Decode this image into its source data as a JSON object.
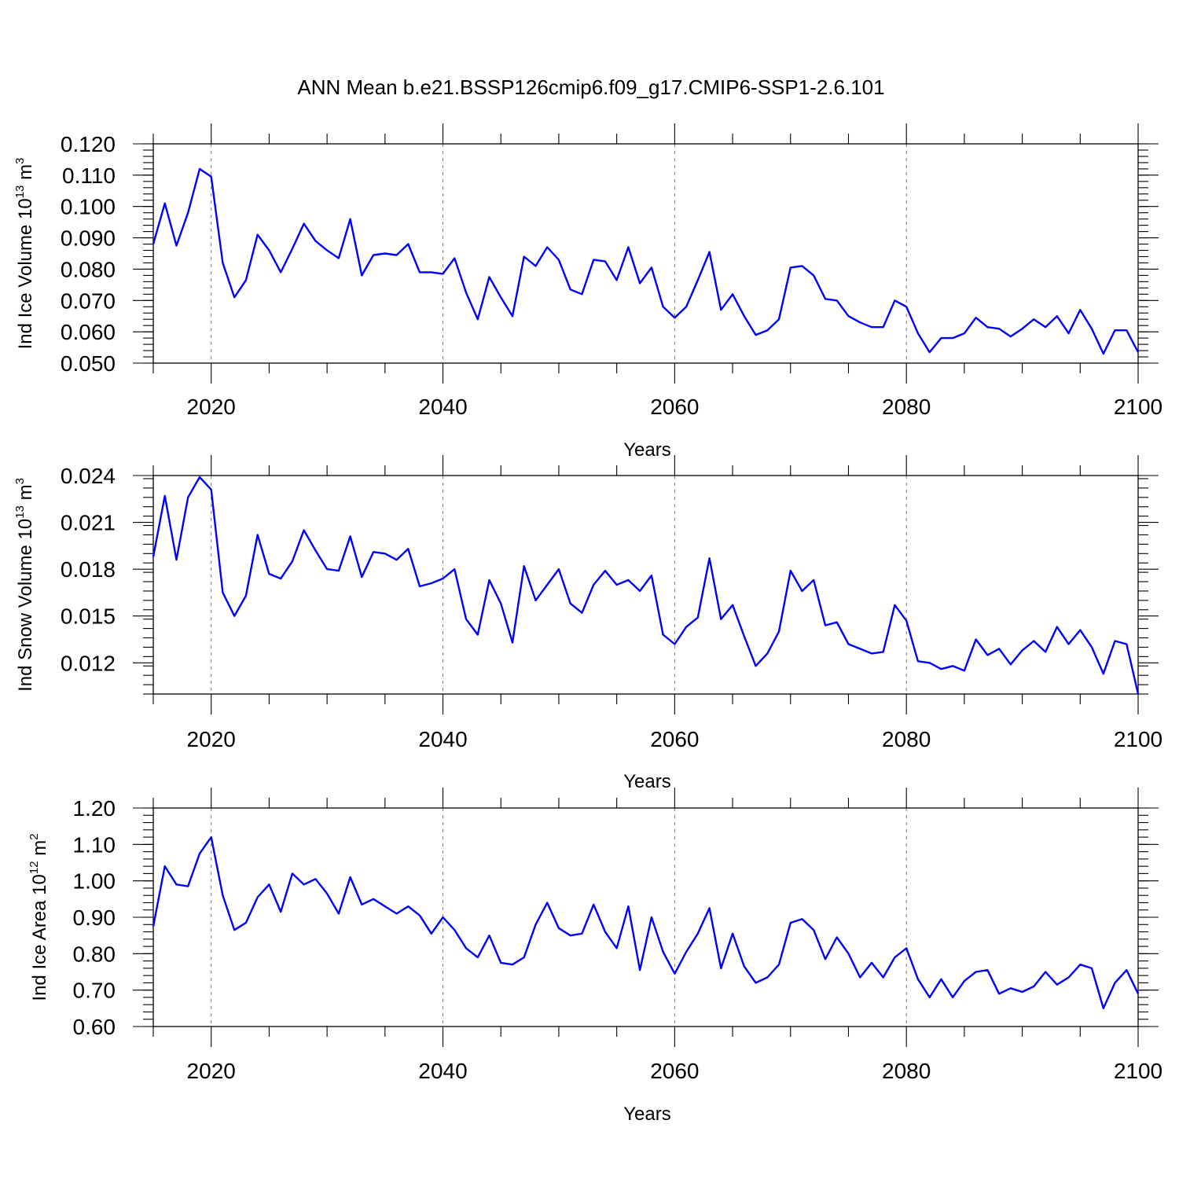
{
  "title": "ANN Mean b.e21.BSSP126cmip6.f09_g17.CMIP6-SSP1-2.6.101",
  "series_color": "#0000ff",
  "chart_data": [
    {
      "type": "line",
      "ylabel": "Ind Ice Volume 10",
      "ylabel_exp": "13",
      "ylabel_unit": " m",
      "ylabel_unit_exp": "3",
      "xlabel": "Years",
      "xlim": [
        2015,
        2100
      ],
      "ylim": [
        0.05,
        0.12
      ],
      "xticks": [
        2020,
        2040,
        2060,
        2080,
        2100
      ],
      "yticks": [
        0.05,
        0.06,
        0.07,
        0.08,
        0.09,
        0.1,
        0.11,
        0.12
      ],
      "ytick_labels": [
        "0.050",
        "0.060",
        "0.070",
        "0.080",
        "0.090",
        "0.100",
        "0.110",
        "0.120"
      ],
      "x": [
        2015,
        2016,
        2017,
        2018,
        2019,
        2020,
        2021,
        2022,
        2023,
        2024,
        2025,
        2026,
        2027,
        2028,
        2029,
        2030,
        2031,
        2032,
        2033,
        2034,
        2035,
        2036,
        2037,
        2038,
        2039,
        2040,
        2041,
        2042,
        2043,
        2044,
        2045,
        2046,
        2047,
        2048,
        2049,
        2050,
        2051,
        2052,
        2053,
        2054,
        2055,
        2056,
        2057,
        2058,
        2059,
        2060,
        2061,
        2062,
        2063,
        2064,
        2065,
        2066,
        2067,
        2068,
        2069,
        2070,
        2071,
        2072,
        2073,
        2074,
        2075,
        2076,
        2077,
        2078,
        2079,
        2080,
        2081,
        2082,
        2083,
        2084,
        2085,
        2086,
        2087,
        2088,
        2089,
        2090,
        2091,
        2092,
        2093,
        2094,
        2095,
        2096,
        2097,
        2098,
        2099,
        2100
      ],
      "values": [
        0.088,
        0.101,
        0.0875,
        0.098,
        0.112,
        0.1095,
        0.082,
        0.071,
        0.0765,
        0.091,
        0.086,
        0.079,
        0.0865,
        0.0945,
        0.089,
        0.086,
        0.0835,
        0.096,
        0.078,
        0.0845,
        0.085,
        0.0845,
        0.088,
        0.079,
        0.079,
        0.0785,
        0.0835,
        0.0725,
        0.064,
        0.0775,
        0.071,
        0.065,
        0.084,
        0.081,
        0.087,
        0.083,
        0.0735,
        0.072,
        0.083,
        0.0825,
        0.0765,
        0.087,
        0.0755,
        0.0805,
        0.068,
        0.0645,
        0.068,
        0.0765,
        0.0855,
        0.067,
        0.072,
        0.065,
        0.059,
        0.0605,
        0.064,
        0.0805,
        0.081,
        0.078,
        0.0705,
        0.07,
        0.065,
        0.063,
        0.0615,
        0.0615,
        0.07,
        0.068,
        0.0595,
        0.0535,
        0.058,
        0.058,
        0.0595,
        0.0645,
        0.0615,
        0.061,
        0.0585,
        0.061,
        0.064,
        0.0615,
        0.065,
        0.0595,
        0.067,
        0.061,
        0.053,
        0.0605,
        0.0605,
        0.0535
      ]
    },
    {
      "type": "line",
      "ylabel": "Ind Snow Volume 10",
      "ylabel_exp": "13",
      "ylabel_unit": " m",
      "ylabel_unit_exp": "3",
      "xlabel": "Years",
      "xlim": [
        2015,
        2100
      ],
      "ylim": [
        0.01,
        0.024
      ],
      "xticks": [
        2020,
        2040,
        2060,
        2080,
        2100
      ],
      "yticks": [
        0.012,
        0.015,
        0.018,
        0.021,
        0.024
      ],
      "ytick_labels": [
        "0.012",
        "0.015",
        "0.018",
        "0.021",
        "0.024"
      ],
      "x": [
        2015,
        2016,
        2017,
        2018,
        2019,
        2020,
        2021,
        2022,
        2023,
        2024,
        2025,
        2026,
        2027,
        2028,
        2029,
        2030,
        2031,
        2032,
        2033,
        2034,
        2035,
        2036,
        2037,
        2038,
        2039,
        2040,
        2041,
        2042,
        2043,
        2044,
        2045,
        2046,
        2047,
        2048,
        2049,
        2050,
        2051,
        2052,
        2053,
        2054,
        2055,
        2056,
        2057,
        2058,
        2059,
        2060,
        2061,
        2062,
        2063,
        2064,
        2065,
        2066,
        2067,
        2068,
        2069,
        2070,
        2071,
        2072,
        2073,
        2074,
        2075,
        2076,
        2077,
        2078,
        2079,
        2080,
        2081,
        2082,
        2083,
        2084,
        2085,
        2086,
        2087,
        2088,
        2089,
        2090,
        2091,
        2092,
        2093,
        2094,
        2095,
        2096,
        2097,
        2098,
        2099,
        2100
      ],
      "values": [
        0.0188,
        0.0227,
        0.0186,
        0.0226,
        0.0239,
        0.0231,
        0.0165,
        0.015,
        0.0163,
        0.0202,
        0.0177,
        0.0174,
        0.0185,
        0.0205,
        0.0192,
        0.018,
        0.0179,
        0.0201,
        0.0175,
        0.0191,
        0.019,
        0.0186,
        0.0193,
        0.0169,
        0.0171,
        0.0174,
        0.018,
        0.0148,
        0.0138,
        0.0173,
        0.0158,
        0.0133,
        0.0182,
        0.016,
        0.017,
        0.018,
        0.0158,
        0.0152,
        0.017,
        0.0179,
        0.017,
        0.0173,
        0.0166,
        0.0176,
        0.0138,
        0.0132,
        0.0143,
        0.0149,
        0.0187,
        0.0148,
        0.0157,
        0.0137,
        0.0118,
        0.0126,
        0.014,
        0.0179,
        0.0166,
        0.0173,
        0.0144,
        0.0146,
        0.0132,
        0.0129,
        0.0126,
        0.0127,
        0.0157,
        0.0147,
        0.0121,
        0.012,
        0.0116,
        0.0118,
        0.0115,
        0.0135,
        0.0125,
        0.0129,
        0.0119,
        0.0128,
        0.0134,
        0.0127,
        0.0143,
        0.0132,
        0.0141,
        0.013,
        0.0113,
        0.0134,
        0.0132,
        0.01
      ]
    },
    {
      "type": "line",
      "ylabel": "Ind Ice Area 10",
      "ylabel_exp": "12",
      "ylabel_unit": " m",
      "ylabel_unit_exp": "2",
      "xlabel": "Years",
      "xlim": [
        2015,
        2100
      ],
      "ylim": [
        0.6,
        1.2
      ],
      "xticks": [
        2020,
        2040,
        2060,
        2080,
        2100
      ],
      "yticks": [
        0.6,
        0.7,
        0.8,
        0.9,
        1.0,
        1.1,
        1.2
      ],
      "ytick_labels": [
        "0.60",
        "0.70",
        "0.80",
        "0.90",
        "1.00",
        "1.10",
        "1.20"
      ],
      "x": [
        2015,
        2016,
        2017,
        2018,
        2019,
        2020,
        2021,
        2022,
        2023,
        2024,
        2025,
        2026,
        2027,
        2028,
        2029,
        2030,
        2031,
        2032,
        2033,
        2034,
        2035,
        2036,
        2037,
        2038,
        2039,
        2040,
        2041,
        2042,
        2043,
        2044,
        2045,
        2046,
        2047,
        2048,
        2049,
        2050,
        2051,
        2052,
        2053,
        2054,
        2055,
        2056,
        2057,
        2058,
        2059,
        2060,
        2061,
        2062,
        2063,
        2064,
        2065,
        2066,
        2067,
        2068,
        2069,
        2070,
        2071,
        2072,
        2073,
        2074,
        2075,
        2076,
        2077,
        2078,
        2079,
        2080,
        2081,
        2082,
        2083,
        2084,
        2085,
        2086,
        2087,
        2088,
        2089,
        2090,
        2091,
        2092,
        2093,
        2094,
        2095,
        2096,
        2097,
        2098,
        2099,
        2100
      ],
      "values": [
        0.875,
        1.04,
        0.99,
        0.985,
        1.075,
        1.12,
        0.96,
        0.865,
        0.885,
        0.955,
        0.99,
        0.915,
        1.02,
        0.99,
        1.005,
        0.965,
        0.91,
        1.01,
        0.935,
        0.95,
        0.93,
        0.91,
        0.93,
        0.905,
        0.855,
        0.9,
        0.865,
        0.815,
        0.79,
        0.85,
        0.775,
        0.77,
        0.79,
        0.88,
        0.94,
        0.87,
        0.85,
        0.855,
        0.935,
        0.86,
        0.815,
        0.93,
        0.755,
        0.9,
        0.805,
        0.745,
        0.805,
        0.855,
        0.925,
        0.76,
        0.855,
        0.765,
        0.72,
        0.735,
        0.77,
        0.885,
        0.895,
        0.865,
        0.785,
        0.845,
        0.8,
        0.735,
        0.775,
        0.735,
        0.79,
        0.815,
        0.73,
        0.68,
        0.73,
        0.68,
        0.725,
        0.75,
        0.755,
        0.69,
        0.705,
        0.695,
        0.71,
        0.75,
        0.715,
        0.735,
        0.77,
        0.76,
        0.65,
        0.72,
        0.755,
        0.69
      ]
    }
  ]
}
